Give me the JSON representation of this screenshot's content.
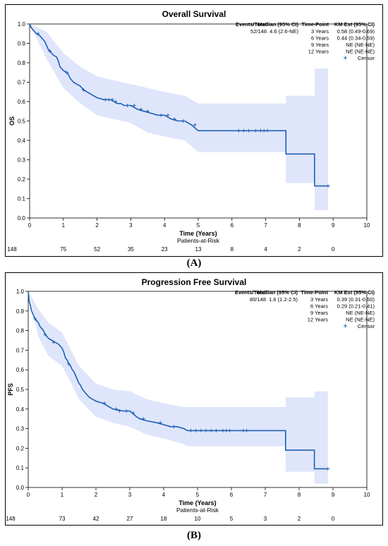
{
  "chart_data": [
    {
      "type": "line",
      "title": "Overall Survival",
      "xlabel": "Time (Years)",
      "ylabel": "OS",
      "xlim": [
        0,
        10
      ],
      "ylim": [
        0,
        1
      ],
      "xticks": [
        "0",
        "1",
        "2",
        "3",
        "4",
        "5",
        "6",
        "7",
        "8",
        "9",
        "10"
      ],
      "yticks": [
        "0.0",
        "0.1",
        "0.2",
        "0.3",
        "0.4",
        "0.5",
        "0.6",
        "0.7",
        "0.8",
        "0.9",
        "1.0"
      ],
      "grid": false,
      "colors": {
        "line": "#1f5fb4",
        "band": "#dfe6fb"
      },
      "stats_table": {
        "headers": [
          "Events/Total",
          "Median (95% CI)",
          "Time-Point",
          "KM Est (95% CI)"
        ],
        "events_total": "52/148",
        "median": "4.6 (2.6-NE)",
        "timepoints": [
          "3 Years",
          "6 Years",
          "9 Years",
          "12 Years"
        ],
        "km_est": [
          "0.58 (0.49-0.69)",
          "0.44 (0.34-0.59)",
          "NE (NE-NE)",
          "NE (NE-NE)"
        ],
        "censor_label": "Censor"
      },
      "at_risk_label": "Patients-at-Risk",
      "at_risk": [
        "148",
        "75",
        "52",
        "35",
        "23",
        "13",
        "8",
        "4",
        "2",
        "0"
      ],
      "series": [
        {
          "points": [
            [
              0,
              1.0
            ],
            [
              0.05,
              0.98
            ],
            [
              0.1,
              0.97
            ],
            [
              0.15,
              0.96
            ],
            [
              0.2,
              0.95
            ],
            [
              0.3,
              0.94
            ],
            [
              0.35,
              0.93
            ],
            [
              0.4,
              0.92
            ],
            [
              0.45,
              0.91
            ],
            [
              0.5,
              0.89
            ],
            [
              0.55,
              0.87
            ],
            [
              0.6,
              0.86
            ],
            [
              0.7,
              0.84
            ],
            [
              0.8,
              0.83
            ],
            [
              0.85,
              0.81
            ],
            [
              0.9,
              0.78
            ],
            [
              0.95,
              0.77
            ],
            [
              1.0,
              0.76
            ],
            [
              1.1,
              0.75
            ],
            [
              1.15,
              0.74
            ],
            [
              1.2,
              0.72
            ],
            [
              1.3,
              0.7
            ],
            [
              1.4,
              0.69
            ],
            [
              1.5,
              0.68
            ],
            [
              1.6,
              0.66
            ],
            [
              1.7,
              0.65
            ],
            [
              1.8,
              0.64
            ],
            [
              1.9,
              0.63
            ],
            [
              2.0,
              0.62
            ],
            [
              2.2,
              0.61
            ],
            [
              2.4,
              0.61
            ],
            [
              2.5,
              0.6
            ],
            [
              2.6,
              0.59
            ],
            [
              2.7,
              0.59
            ],
            [
              2.8,
              0.58
            ],
            [
              3.0,
              0.58
            ],
            [
              3.2,
              0.56
            ],
            [
              3.4,
              0.55
            ],
            [
              3.6,
              0.54
            ],
            [
              3.8,
              0.53
            ],
            [
              4.0,
              0.53
            ],
            [
              4.2,
              0.51
            ],
            [
              4.4,
              0.5
            ],
            [
              4.6,
              0.5
            ],
            [
              4.8,
              0.48
            ],
            [
              5.0,
              0.45
            ],
            [
              7.6,
              0.45
            ],
            [
              7.6,
              0.33
            ],
            [
              8.45,
              0.33
            ],
            [
              8.45,
              0.165
            ],
            [
              8.85,
              0.165
            ]
          ],
          "band_upper": [
            [
              0,
              1.0
            ],
            [
              0.5,
              0.96
            ],
            [
              1.0,
              0.85
            ],
            [
              1.5,
              0.78
            ],
            [
              2.0,
              0.73
            ],
            [
              2.5,
              0.71
            ],
            [
              3.0,
              0.69
            ],
            [
              3.5,
              0.67
            ],
            [
              4.0,
              0.65
            ],
            [
              4.6,
              0.63
            ],
            [
              5.0,
              0.59
            ],
            [
              7.6,
              0.59
            ],
            [
              7.6,
              0.63
            ],
            [
              8.45,
              0.63
            ],
            [
              8.45,
              0.77
            ],
            [
              8.85,
              0.77
            ]
          ],
          "band_lower": [
            [
              0,
              1.0
            ],
            [
              0.5,
              0.82
            ],
            [
              1.0,
              0.67
            ],
            [
              1.5,
              0.59
            ],
            [
              2.0,
              0.53
            ],
            [
              2.5,
              0.51
            ],
            [
              3.0,
              0.49
            ],
            [
              3.5,
              0.44
            ],
            [
              4.0,
              0.42
            ],
            [
              4.6,
              0.4
            ],
            [
              5.0,
              0.34
            ],
            [
              7.6,
              0.34
            ],
            [
              7.6,
              0.18
            ],
            [
              8.45,
              0.18
            ],
            [
              8.45,
              0.04
            ],
            [
              8.85,
              0.04
            ]
          ],
          "censors": [
            [
              0.25,
              0.95
            ],
            [
              0.6,
              0.86
            ],
            [
              1.1,
              0.75
            ],
            [
              1.6,
              0.66
            ],
            [
              2.25,
              0.61
            ],
            [
              2.35,
              0.61
            ],
            [
              2.45,
              0.61
            ],
            [
              2.55,
              0.6
            ],
            [
              2.9,
              0.58
            ],
            [
              3.1,
              0.58
            ],
            [
              3.3,
              0.56
            ],
            [
              3.5,
              0.55
            ],
            [
              3.9,
              0.53
            ],
            [
              4.1,
              0.53
            ],
            [
              4.3,
              0.51
            ],
            [
              4.55,
              0.5
            ],
            [
              4.9,
              0.48
            ],
            [
              6.2,
              0.45
            ],
            [
              6.35,
              0.45
            ],
            [
              6.5,
              0.45
            ],
            [
              6.7,
              0.45
            ],
            [
              6.85,
              0.45
            ],
            [
              6.95,
              0.45
            ],
            [
              7.05,
              0.45
            ],
            [
              8.85,
              0.165
            ]
          ]
        }
      ]
    },
    {
      "type": "line",
      "title": "Progression Free Survival",
      "xlabel": "Time (Years)",
      "ylabel": "PFS",
      "xlim": [
        0,
        10
      ],
      "ylim": [
        0,
        1
      ],
      "xticks": [
        "0",
        "1",
        "2",
        "3",
        "4",
        "5",
        "6",
        "7",
        "8",
        "9",
        "10"
      ],
      "yticks": [
        "0.0",
        "0.1",
        "0.2",
        "0.3",
        "0.4",
        "0.5",
        "0.6",
        "0.7",
        "0.8",
        "0.9",
        "1.0"
      ],
      "grid": false,
      "colors": {
        "line": "#1f5fb4",
        "band": "#dfe6fb"
      },
      "stats_table": {
        "headers": [
          "Events/Total",
          "Median (95% CI)",
          "Time-Point",
          "KM Est (95% CI)"
        ],
        "events_total": "80/148",
        "median": "1.6 (1.2-2.5)",
        "timepoints": [
          "3 Years",
          "6 Years",
          "9 Years",
          "12 Years"
        ],
        "km_est": [
          "0.39 (0.31-0.50)",
          "0.29 (0.21-0.41)",
          "NE (NE-NE)",
          "NE (NE-NE)"
        ],
        "censor_label": "Censor"
      },
      "at_risk_label": "Patients-at-Risk",
      "at_risk": [
        "148",
        "73",
        "42",
        "27",
        "18",
        "10",
        "5",
        "3",
        "2",
        "0"
      ],
      "series": [
        {
          "points": [
            [
              0,
              1.0
            ],
            [
              0.03,
              0.95
            ],
            [
              0.06,
              0.93
            ],
            [
              0.1,
              0.9
            ],
            [
              0.15,
              0.88
            ],
            [
              0.2,
              0.86
            ],
            [
              0.25,
              0.85
            ],
            [
              0.3,
              0.84
            ],
            [
              0.35,
              0.82
            ],
            [
              0.4,
              0.81
            ],
            [
              0.45,
              0.8
            ],
            [
              0.5,
              0.78
            ],
            [
              0.55,
              0.77
            ],
            [
              0.6,
              0.76
            ],
            [
              0.7,
              0.75
            ],
            [
              0.8,
              0.74
            ],
            [
              0.9,
              0.73
            ],
            [
              1.0,
              0.71
            ],
            [
              1.05,
              0.69
            ],
            [
              1.1,
              0.66
            ],
            [
              1.15,
              0.65
            ],
            [
              1.2,
              0.63
            ],
            [
              1.25,
              0.62
            ],
            [
              1.3,
              0.6
            ],
            [
              1.35,
              0.59
            ],
            [
              1.4,
              0.57
            ],
            [
              1.45,
              0.55
            ],
            [
              1.5,
              0.53
            ],
            [
              1.55,
              0.52
            ],
            [
              1.6,
              0.5
            ],
            [
              1.7,
              0.48
            ],
            [
              1.8,
              0.46
            ],
            [
              1.9,
              0.45
            ],
            [
              2.0,
              0.44
            ],
            [
              2.2,
              0.43
            ],
            [
              2.3,
              0.42
            ],
            [
              2.4,
              0.41
            ],
            [
              2.5,
              0.4
            ],
            [
              2.8,
              0.39
            ],
            [
              3.0,
              0.39
            ],
            [
              3.2,
              0.36
            ],
            [
              3.3,
              0.35
            ],
            [
              3.5,
              0.34
            ],
            [
              3.8,
              0.33
            ],
            [
              4.0,
              0.32
            ],
            [
              4.2,
              0.31
            ],
            [
              4.4,
              0.31
            ],
            [
              4.6,
              0.3
            ],
            [
              4.7,
              0.29
            ],
            [
              7.6,
              0.29
            ],
            [
              7.6,
              0.19
            ],
            [
              8.45,
              0.19
            ],
            [
              8.45,
              0.095
            ],
            [
              8.85,
              0.095
            ]
          ],
          "band_upper": [
            [
              0,
              1.0
            ],
            [
              0.3,
              0.91
            ],
            [
              0.6,
              0.84
            ],
            [
              1.0,
              0.79
            ],
            [
              1.5,
              0.62
            ],
            [
              2.0,
              0.53
            ],
            [
              2.5,
              0.5
            ],
            [
              3.0,
              0.49
            ],
            [
              3.5,
              0.45
            ],
            [
              4.0,
              0.43
            ],
            [
              4.6,
              0.41
            ],
            [
              4.7,
              0.41
            ],
            [
              7.6,
              0.41
            ],
            [
              7.6,
              0.46
            ],
            [
              8.45,
              0.46
            ],
            [
              8.45,
              0.49
            ],
            [
              8.85,
              0.49
            ]
          ],
          "band_lower": [
            [
              0,
              1.0
            ],
            [
              0.3,
              0.77
            ],
            [
              0.6,
              0.67
            ],
            [
              1.0,
              0.62
            ],
            [
              1.5,
              0.45
            ],
            [
              2.0,
              0.36
            ],
            [
              2.5,
              0.33
            ],
            [
              3.0,
              0.31
            ],
            [
              3.5,
              0.27
            ],
            [
              4.0,
              0.25
            ],
            [
              4.6,
              0.22
            ],
            [
              4.7,
              0.21
            ],
            [
              7.6,
              0.21
            ],
            [
              7.6,
              0.08
            ],
            [
              8.45,
              0.08
            ],
            [
              8.45,
              0.02
            ],
            [
              8.85,
              0.02
            ]
          ],
          "censors": [
            [
              0.2,
              0.86
            ],
            [
              0.5,
              0.78
            ],
            [
              0.75,
              0.74
            ],
            [
              1.2,
              0.63
            ],
            [
              2.25,
              0.43
            ],
            [
              2.6,
              0.4
            ],
            [
              2.7,
              0.39
            ],
            [
              2.9,
              0.39
            ],
            [
              3.1,
              0.38
            ],
            [
              3.4,
              0.35
            ],
            [
              3.9,
              0.33
            ],
            [
              4.3,
              0.31
            ],
            [
              4.8,
              0.29
            ],
            [
              4.95,
              0.29
            ],
            [
              5.1,
              0.29
            ],
            [
              5.25,
              0.29
            ],
            [
              5.4,
              0.29
            ],
            [
              5.55,
              0.29
            ],
            [
              5.75,
              0.29
            ],
            [
              5.85,
              0.29
            ],
            [
              5.95,
              0.29
            ],
            [
              6.35,
              0.29
            ],
            [
              6.45,
              0.29
            ],
            [
              8.85,
              0.095
            ]
          ]
        }
      ]
    }
  ],
  "captions": [
    "(A)",
    "(B)"
  ]
}
